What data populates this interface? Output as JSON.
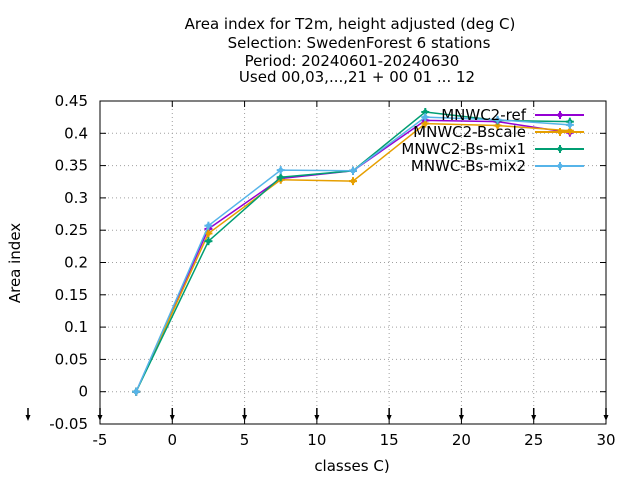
{
  "chart_data": {
    "type": "line",
    "title_lines": [
      "Area index  for T2m, height adjusted (deg C)",
      "Selection: SwedenForest      6 stations",
      "Period: 20240601-20240630",
      "Used 00,03,...,21 + 00 01 ... 12"
    ],
    "xlabel": "classes C)",
    "ylabel": "Area index",
    "xlim": [
      -5,
      30
    ],
    "ylim": [
      -0.05,
      0.45
    ],
    "xticks": [
      "-5",
      "0",
      "5",
      "10",
      "15",
      "20",
      "25",
      "30"
    ],
    "yticks": [
      "-0.05",
      "0",
      "0.05",
      "0.1",
      "0.15",
      "0.2",
      "0.25",
      "0.3",
      "0.35",
      "0.4",
      "0.45"
    ],
    "grid": true,
    "legend_position": "top-right",
    "series": [
      {
        "name": "MNWC2-ref",
        "color": "#9400d3",
        "marker": "plus",
        "x": [
          -2.5,
          2.5,
          7.5,
          12.5,
          17.5,
          22.5,
          27.5
        ],
        "y": [
          0.0,
          0.252,
          0.33,
          0.342,
          0.42,
          0.418,
          0.401
        ]
      },
      {
        "name": "MNWC2-Bscale",
        "color": "#e69f00",
        "marker": "plus",
        "x": [
          -2.5,
          2.5,
          7.5,
          12.5,
          17.5,
          22.5,
          27.5
        ],
        "y": [
          0.0,
          0.245,
          0.328,
          0.326,
          0.415,
          0.412,
          0.404
        ]
      },
      {
        "name": "MNWC2-Bs-mix1",
        "color": "#009e73",
        "marker": "plus",
        "x": [
          -2.5,
          2.5,
          7.5,
          12.5,
          17.5,
          22.5,
          27.5
        ],
        "y": [
          0.0,
          0.233,
          0.332,
          0.342,
          0.433,
          0.42,
          0.418
        ]
      },
      {
        "name": "MNWC-Bs-mix2",
        "color": "#56b4e9",
        "marker": "plus",
        "x": [
          -2.5,
          2.5,
          7.5,
          12.5,
          17.5,
          22.5,
          27.5
        ],
        "y": [
          0.0,
          0.257,
          0.343,
          0.342,
          0.425,
          0.421,
          0.413
        ]
      }
    ],
    "bottom_arrow_markers": [
      -5,
      0,
      5,
      10,
      15,
      20,
      25,
      30
    ]
  }
}
